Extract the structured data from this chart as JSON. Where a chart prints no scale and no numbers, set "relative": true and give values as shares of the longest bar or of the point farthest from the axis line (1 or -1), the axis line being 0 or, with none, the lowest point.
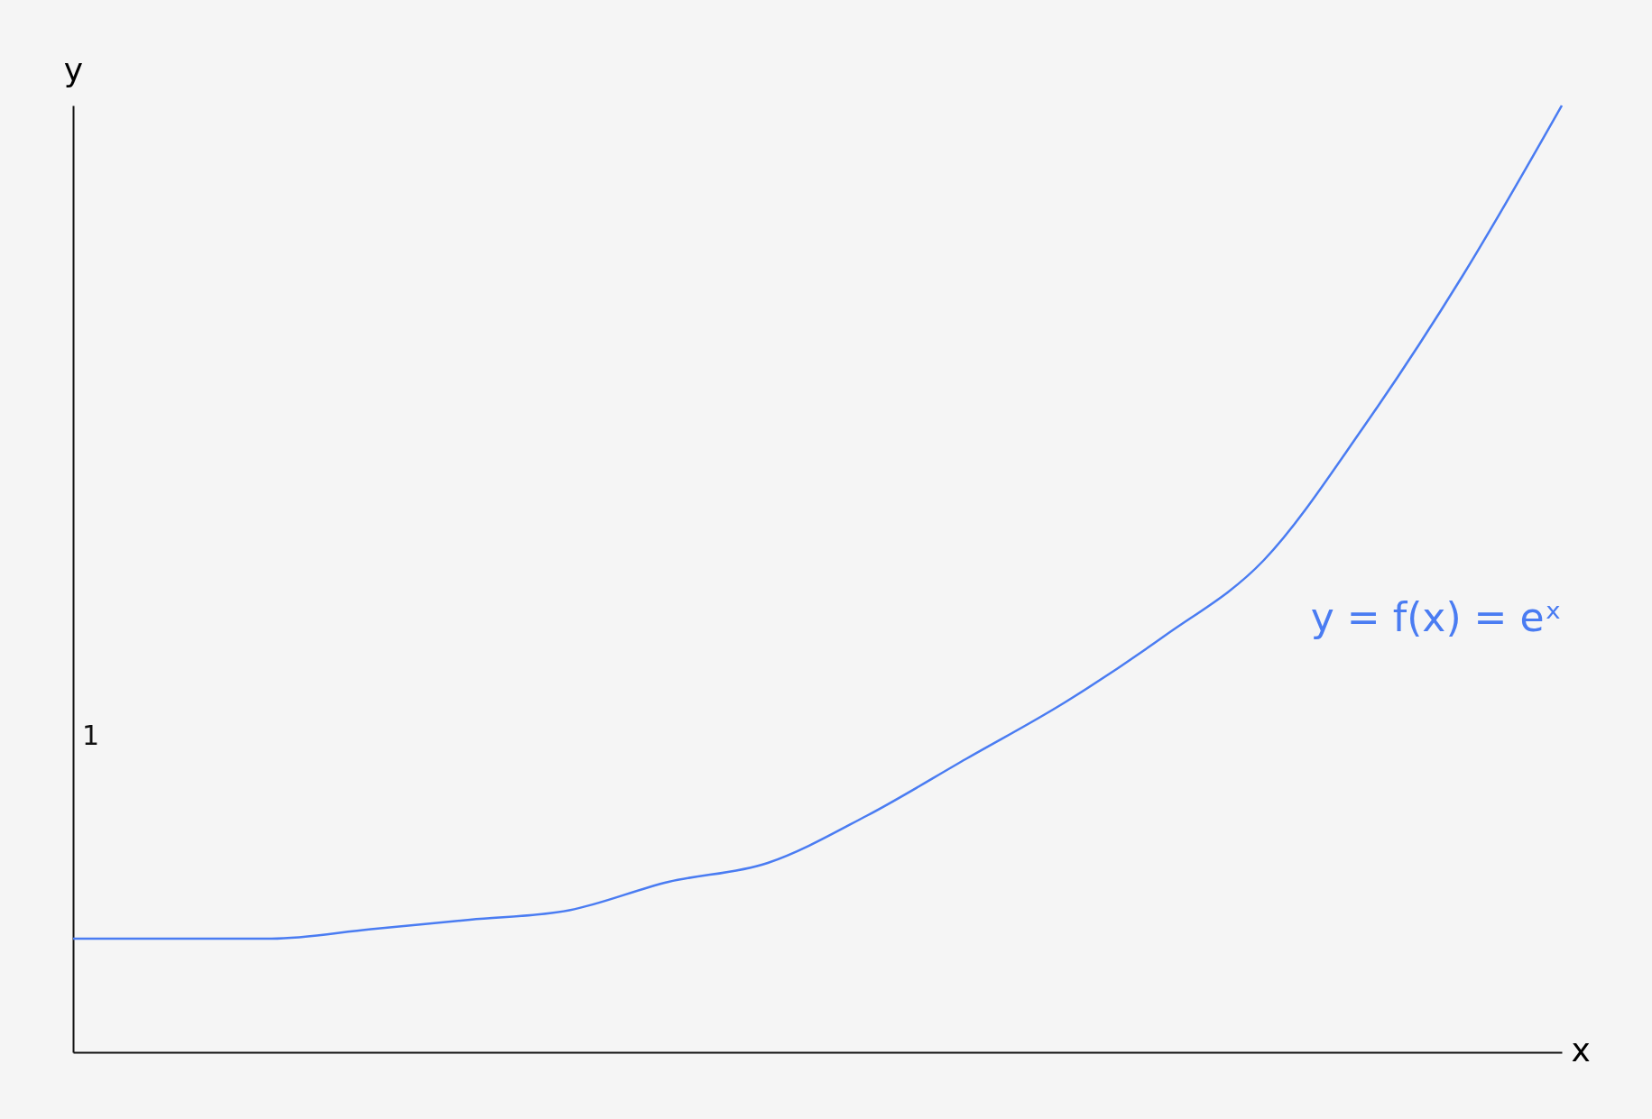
{
  "chart_data": {
    "type": "line",
    "relative": true,
    "xlabel": "x",
    "ylabel": "y",
    "annotations": [
      "1"
    ],
    "categories": [
      null,
      null,
      null,
      null,
      null,
      null,
      null,
      null,
      null,
      null,
      null,
      null,
      null,
      null,
      null,
      null
    ],
    "series": [
      {
        "name": "y = f(x) = eˣ",
        "color": "#4a7cf2",
        "values": [
          0.12,
          0.12,
          0.12,
          0.13,
          0.14,
          0.15,
          0.18,
          0.2,
          0.25,
          0.31,
          0.37,
          0.44,
          0.52,
          0.66,
          0.82,
          1
        ]
      }
    ]
  }
}
